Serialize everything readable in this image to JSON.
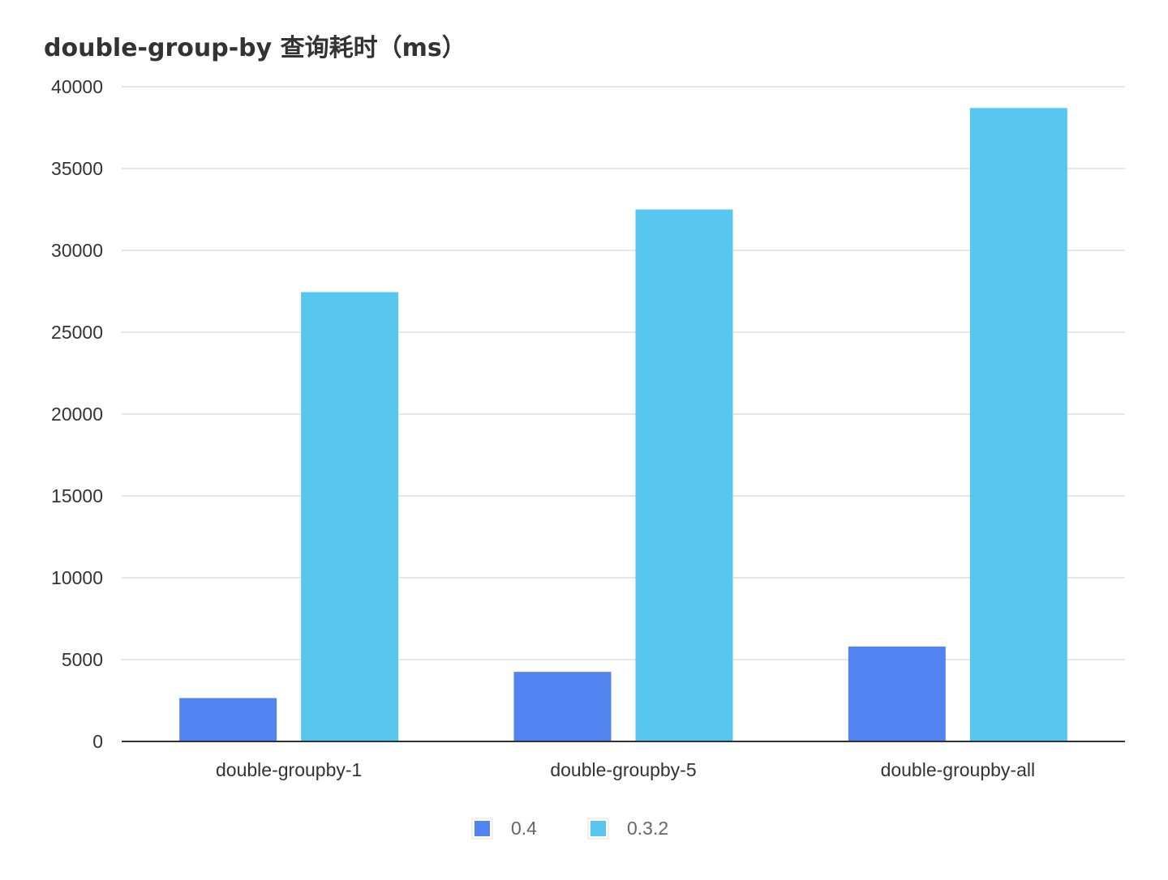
{
  "chart_data": {
    "type": "bar",
    "title": "double-group-by 查询耗时（ms）",
    "xlabel": "",
    "ylabel": "",
    "categories": [
      "double-groupby-1",
      "double-groupby-5",
      "double-groupby-all"
    ],
    "series": [
      {
        "name": "0.4",
        "color": "#5283f0",
        "values": [
          2650,
          4250,
          5800
        ]
      },
      {
        "name": "0.3.2",
        "color": "#57c7f0",
        "values": [
          27450,
          32500,
          38700
        ]
      }
    ],
    "ylim": [
      0,
      40000
    ],
    "yticks": [
      0,
      5000,
      10000,
      15000,
      20000,
      25000,
      30000,
      35000,
      40000
    ],
    "grid": true,
    "legend_position": "bottom-center"
  }
}
